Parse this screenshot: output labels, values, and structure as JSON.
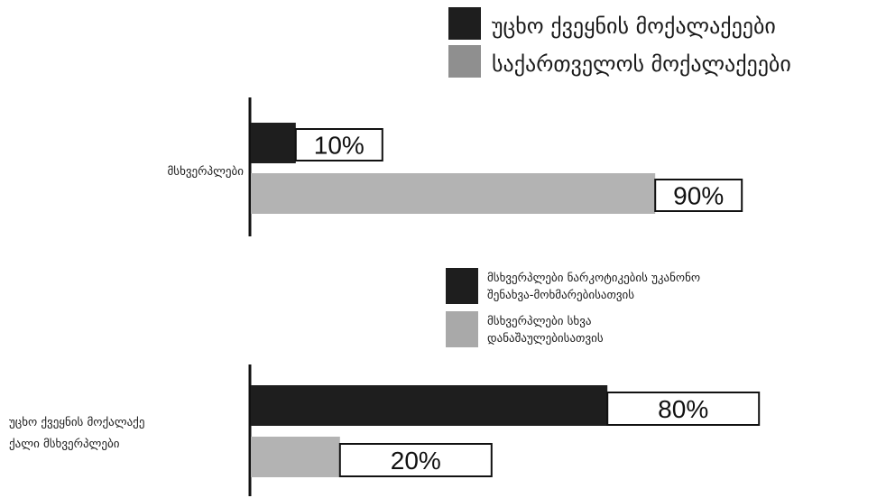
{
  "chart_data": [
    {
      "type": "bar",
      "orientation": "horizontal",
      "legend_position": "top-right",
      "categories": [
        "მსხვერპლები"
      ],
      "series": [
        {
          "name": "უცხო ქვეყნის მოქალაქეები",
          "color": "#1e1e1e",
          "values": [
            10
          ],
          "data_labels": [
            "10%"
          ]
        },
        {
          "name": "საქართველოს მოქალაქეები",
          "color": "#b3b3b3",
          "legend_color": "#8f8f8f",
          "values": [
            90
          ],
          "data_labels": [
            "90%"
          ]
        }
      ],
      "xlim": [
        0,
        100
      ],
      "value_unit": "%",
      "grid": false
    },
    {
      "type": "bar",
      "orientation": "horizontal",
      "legend_position": "top-right",
      "categories": [
        "უცხო ქვეყნის მოქალაქე ქალი მსხვერპლები"
      ],
      "series": [
        {
          "name": "მსხვერპლები ნარკოტიკების უკანონო შენახვა-მოხმარებისათვის",
          "color": "#1e1e1e",
          "values": [
            80
          ],
          "data_labels": [
            "80%"
          ]
        },
        {
          "name": "მსხვერპლები სხვა დანაშაულებისათვის",
          "color": "#b3b3b3",
          "legend_color": "#a9a9a9",
          "values": [
            20
          ],
          "data_labels": [
            "20%"
          ]
        }
      ],
      "xlim": [
        0,
        100
      ],
      "value_unit": "%",
      "grid": false
    }
  ]
}
